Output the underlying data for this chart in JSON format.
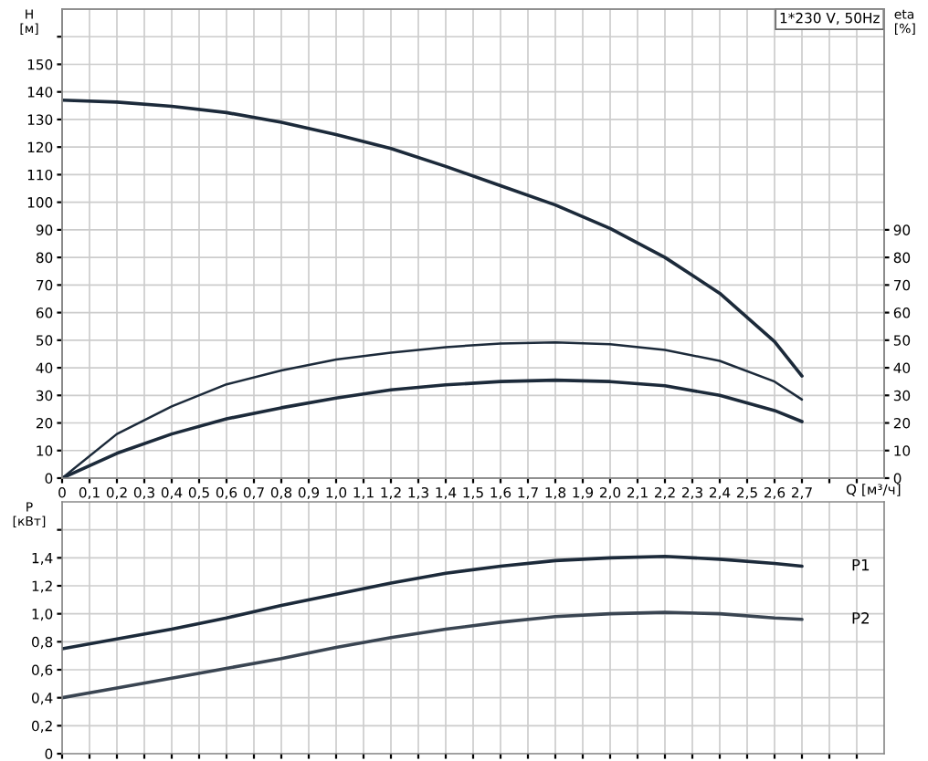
{
  "chart_data": [
    {
      "type": "line",
      "ylabel": "H\n[м]",
      "y2label": "eta\n[%]",
      "xlabel": "Q [м³/ч]",
      "annotations": [
        "1*230 V, 50Hz"
      ],
      "x": [
        0,
        0.2,
        0.4,
        0.6,
        0.8,
        1.0,
        1.2,
        1.4,
        1.6,
        1.8,
        2.0,
        2.2,
        2.4,
        2.6,
        2.7
      ],
      "series": [
        {
          "color": "#1c2a3a",
          "values": [
            137,
            136.3,
            134.8,
            132.5,
            129,
            124.5,
            119.5,
            113,
            106,
            99,
            90.5,
            80,
            67,
            49.5,
            37
          ]
        },
        {
          "color": "#1c2a3a",
          "axis": "y2",
          "values": [
            0,
            16,
            26,
            34,
            39,
            43,
            45.5,
            47.5,
            48.8,
            49.2,
            48.5,
            46.5,
            42.5,
            35,
            28.5
          ]
        },
        {
          "color": "#1c2a3a",
          "axis": "y2",
          "values": [
            0,
            9,
            16,
            21.5,
            25.5,
            29,
            32,
            33.8,
            35,
            35.5,
            35,
            33.5,
            30,
            24.5,
            20.5
          ]
        }
      ],
      "xlim": [
        0,
        3.0
      ],
      "xticks": [
        0,
        {
          "value": 0.1,
          "label": "0,1"
        },
        {
          "value": 0.2,
          "label": "0,2"
        },
        {
          "value": 0.3,
          "label": "0,3"
        },
        {
          "value": 0.4,
          "label": "0,4"
        },
        {
          "value": 0.5,
          "label": "0,5"
        },
        {
          "value": 0.6,
          "label": "0,6"
        },
        {
          "value": 0.7,
          "label": "0,7"
        },
        {
          "value": 0.8,
          "label": "0,8"
        },
        {
          "value": 0.9,
          "label": "0,9"
        },
        {
          "value": 1.0,
          "label": "1,0"
        },
        {
          "value": 1.1,
          "label": "1,1"
        },
        {
          "value": 1.2,
          "label": "1,2"
        },
        {
          "value": 1.3,
          "label": "1,3"
        },
        {
          "value": 1.4,
          "label": "1,4"
        },
        {
          "value": 1.5,
          "label": "1,5"
        },
        {
          "value": 1.6,
          "label": "1,6"
        },
        {
          "value": 1.7,
          "label": "1,7"
        },
        {
          "value": 1.8,
          "label": "1,8"
        },
        {
          "value": 1.9,
          "label": "1,9"
        },
        {
          "value": 2.0,
          "label": "2,0"
        },
        {
          "value": 2.1,
          "label": "2,1"
        },
        {
          "value": 2.2,
          "label": "2,2"
        },
        {
          "value": 2.3,
          "label": "2,3"
        },
        {
          "value": 2.4,
          "label": "2,4"
        },
        {
          "value": 2.5,
          "label": "2,5"
        },
        {
          "value": 2.6,
          "label": "2,6"
        },
        {
          "value": 2.7,
          "label": "2,7"
        },
        {
          "value": 2.8,
          "label": null
        },
        {
          "value": 2.9,
          "label": null
        }
      ],
      "ylim": [
        0,
        170
      ],
      "yticks": [
        0,
        10,
        20,
        30,
        40,
        50,
        60,
        70,
        80,
        90,
        100,
        110,
        120,
        130,
        140,
        150,
        {
          "value": 160,
          "label": null
        }
      ],
      "y2lim": [
        0,
        170
      ],
      "y2ticks": [
        0,
        10,
        20,
        30,
        40,
        50,
        60,
        70,
        80,
        90
      ],
      "grid": true,
      "legend": false
    },
    {
      "type": "line",
      "ylabel": "P\n[кВт]",
      "x": [
        0,
        0.2,
        0.4,
        0.6,
        0.8,
        1.0,
        1.2,
        1.4,
        1.6,
        1.8,
        2.0,
        2.2,
        2.4,
        2.6,
        2.7
      ],
      "series": [
        {
          "name": "P1",
          "color": "#1c2a3a",
          "values": [
            0.75,
            0.82,
            0.89,
            0.97,
            1.06,
            1.14,
            1.22,
            1.29,
            1.34,
            1.38,
            1.4,
            1.41,
            1.39,
            1.36,
            1.34
          ]
        },
        {
          "name": "P2",
          "color": "#3a4552",
          "values": [
            0.4,
            0.47,
            0.54,
            0.61,
            0.68,
            0.76,
            0.83,
            0.89,
            0.94,
            0.98,
            1.0,
            1.01,
            1.0,
            0.97,
            0.96
          ]
        }
      ],
      "xlim": [
        0,
        3.0
      ],
      "xticks": [
        0,
        0.1,
        0.2,
        0.3,
        0.4,
        0.5,
        0.6,
        0.7,
        0.8,
        0.9,
        1.0,
        1.1,
        1.2,
        1.3,
        1.4,
        1.5,
        1.6,
        1.7,
        1.8,
        1.9,
        2.0,
        2.1,
        2.2,
        2.3,
        2.4,
        2.5,
        2.6,
        2.7,
        2.8,
        2.9
      ],
      "ylim": [
        0,
        1.8
      ],
      "yticks": [
        0,
        {
          "value": 0.2,
          "label": "0,2"
        },
        {
          "value": 0.4,
          "label": "0,4"
        },
        {
          "value": 0.6,
          "label": "0,6"
        },
        {
          "value": 0.8,
          "label": "0,8"
        },
        {
          "value": 1.0,
          "label": "1,0"
        },
        {
          "value": 1.2,
          "label": "1,2"
        },
        {
          "value": 1.4,
          "label": "1,4"
        },
        {
          "value": 1.6,
          "label": null
        }
      ],
      "tick_labels": "y",
      "grid": true,
      "legend": false
    }
  ]
}
